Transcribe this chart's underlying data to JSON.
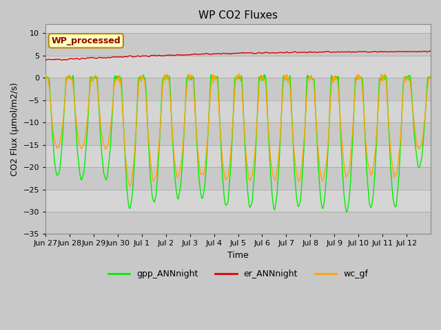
{
  "title": "WP CO2 Fluxes",
  "xlabel": "Time",
  "ylabel": "CO2 Flux (μmol/m2/s)",
  "ylim": [
    -35,
    12
  ],
  "yticks": [
    -35,
    -30,
    -25,
    -20,
    -15,
    -10,
    -5,
    0,
    5,
    10
  ],
  "legend_label": "WP_processed",
  "legend_label_color": "#8B0000",
  "legend_box_facecolor": "#FFFFC0",
  "legend_box_edgecolor": "#B8860B",
  "line_colors": {
    "gpp": "#00EE00",
    "er": "#DD0000",
    "wc": "#FFA500"
  },
  "line_labels": [
    "gpp_ANNnight",
    "er_ANNnight",
    "wc_gf"
  ],
  "n_days": 16,
  "xtick_labels": [
    "Jun 27",
    "Jun 28",
    "Jun 29",
    "Jun 30",
    "Jul 1",
    "Jul 2",
    "Jul 3",
    "Jul 4",
    "Jul 5",
    "Jul 6",
    "Jul 7",
    "Jul 8",
    "Jul 9",
    "Jul 10",
    "Jul 11",
    "Jul 12"
  ],
  "figure_bg": "#C8C8C8",
  "axes_bg": "#D8D8D8",
  "grid_color": "#BEBEBE",
  "title_fontsize": 11,
  "axis_fontsize": 9,
  "tick_fontsize": 8,
  "linewidth": 1.0
}
